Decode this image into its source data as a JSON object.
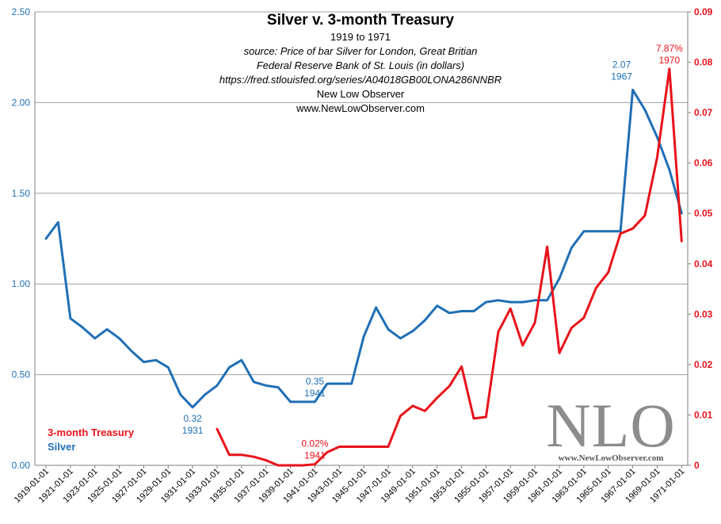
{
  "chart_data": {
    "type": "line",
    "title": "Silver v. 3-month Treasury",
    "subtitle": "1919 to 1971",
    "source_lines": [
      "source: Price of bar Silver for London, Great Britian",
      "Federal Reserve Bank of St. Louis (in dollars)",
      "https://fred.stlouisfed.org/series/A04018GB00LONA286NNBR",
      "New Low Observer",
      "www.NewLowObserver.com"
    ],
    "left_axis": {
      "ylim": [
        0,
        2.5
      ],
      "ticks": [
        "0.00",
        "0.50",
        "1.00",
        "1.50",
        "2.00",
        "2.50"
      ]
    },
    "right_axis": {
      "ylim": [
        0,
        0.09
      ],
      "ticks": [
        "0",
        "0.01",
        "0.02",
        "0.03",
        "0.04",
        "0.05",
        "0.06",
        "0.07",
        "0.08",
        "0.09"
      ]
    },
    "x_tick_labels": [
      "1919-01-01",
      "1921-01-01",
      "1923-01-01",
      "1925-01-01",
      "1927-01-01",
      "1929-01-01",
      "1931-01-01",
      "1933-01-01",
      "1935-01-01",
      "1937-01-01",
      "1939-01-01",
      "1941-01-01",
      "1943-01-01",
      "1945-01-01",
      "1947-01-01",
      "1949-01-01",
      "1951-01-01",
      "1953-01-01",
      "1955-01-01",
      "1957-01-01",
      "1959-01-01",
      "1961-01-01",
      "1963-01-01",
      "1965-01-01",
      "1967-01-01",
      "1969-01-01",
      "1971-01-01"
    ],
    "series": [
      {
        "name": "Silver",
        "axis": "left",
        "color": "#1f6fb5",
        "x": [
          1919,
          1920,
          1921,
          1922,
          1923,
          1924,
          1925,
          1926,
          1927,
          1928,
          1929,
          1930,
          1931,
          1932,
          1933,
          1934,
          1935,
          1936,
          1937,
          1938,
          1939,
          1940,
          1941,
          1942,
          1943,
          1944,
          1945,
          1946,
          1947,
          1948,
          1949,
          1950,
          1951,
          1952,
          1953,
          1954,
          1955,
          1956,
          1957,
          1958,
          1959,
          1960,
          1961,
          1962,
          1963,
          1964,
          1965,
          1966,
          1967,
          1968,
          1969,
          1970,
          1971
        ],
        "values": [
          1.25,
          1.34,
          0.81,
          0.76,
          0.7,
          0.75,
          0.7,
          0.63,
          0.57,
          0.58,
          0.54,
          0.39,
          0.32,
          0.39,
          0.44,
          0.54,
          0.58,
          0.46,
          0.44,
          0.43,
          0.35,
          0.35,
          0.35,
          0.45,
          0.45,
          0.45,
          0.71,
          0.87,
          0.75,
          0.7,
          0.74,
          0.8,
          0.88,
          0.84,
          0.85,
          0.85,
          0.9,
          0.91,
          0.9,
          0.9,
          0.91,
          0.91,
          1.03,
          1.2,
          1.29,
          1.29,
          1.29,
          1.29,
          2.07,
          1.96,
          1.81,
          1.63,
          1.39
        ]
      },
      {
        "name": "3-month Treasury",
        "axis": "right",
        "color": "#e8121a",
        "x": [
          1933,
          1934,
          1935,
          1936,
          1937,
          1938,
          1939,
          1940,
          1941,
          1942,
          1943,
          1944,
          1945,
          1946,
          1947,
          1948,
          1949,
          1950,
          1951,
          1952,
          1953,
          1954,
          1955,
          1956,
          1957,
          1958,
          1959,
          1960,
          1961,
          1962,
          1963,
          1964,
          1965,
          1966,
          1967,
          1968,
          1969,
          1970,
          1971
        ],
        "values": [
          0.0072,
          0.0021,
          0.0021,
          0.0017,
          0.001,
          0.0,
          0.0,
          0.0,
          0.0002,
          0.0026,
          0.0037,
          0.0037,
          0.0037,
          0.0037,
          0.0037,
          0.0098,
          0.0118,
          0.0108,
          0.0134,
          0.0157,
          0.0196,
          0.0093,
          0.0096,
          0.0265,
          0.0311,
          0.0238,
          0.0283,
          0.0434,
          0.0223,
          0.0273,
          0.0293,
          0.0352,
          0.0383,
          0.046,
          0.047,
          0.0496,
          0.0611,
          0.0787,
          0.0445
        ]
      }
    ],
    "annotations": [
      {
        "series": "Silver",
        "x": 1931,
        "value": 0.32,
        "lines": [
          "0.32",
          "1931"
        ],
        "position": "below"
      },
      {
        "series": "Silver",
        "x": 1941,
        "value": 0.35,
        "lines": [
          "0.35",
          "1941"
        ],
        "position": "above"
      },
      {
        "series": "Silver",
        "x": 1967,
        "value": 2.07,
        "lines": [
          "2.07",
          "1967"
        ],
        "position": "above-left"
      },
      {
        "series": "3-month Treasury",
        "x": 1941,
        "value": 0.0002,
        "lines": [
          "0.02%",
          "1941"
        ],
        "position": "above"
      },
      {
        "series": "3-month Treasury",
        "x": 1970,
        "value": 0.0787,
        "lines": [
          "7.87%",
          "1970"
        ],
        "position": "above"
      }
    ]
  },
  "legend": {
    "treasury_label": "3-month Treasury",
    "silver_label": "Silver"
  },
  "watermark": {
    "logo_text": "NLO",
    "url_text": "www.NewLowObserver.com"
  },
  "colors": {
    "silver": "#1f6fb5",
    "treasury": "#e8121a",
    "grid": "#a0a0a0",
    "axis": "#7f7f7f"
  }
}
